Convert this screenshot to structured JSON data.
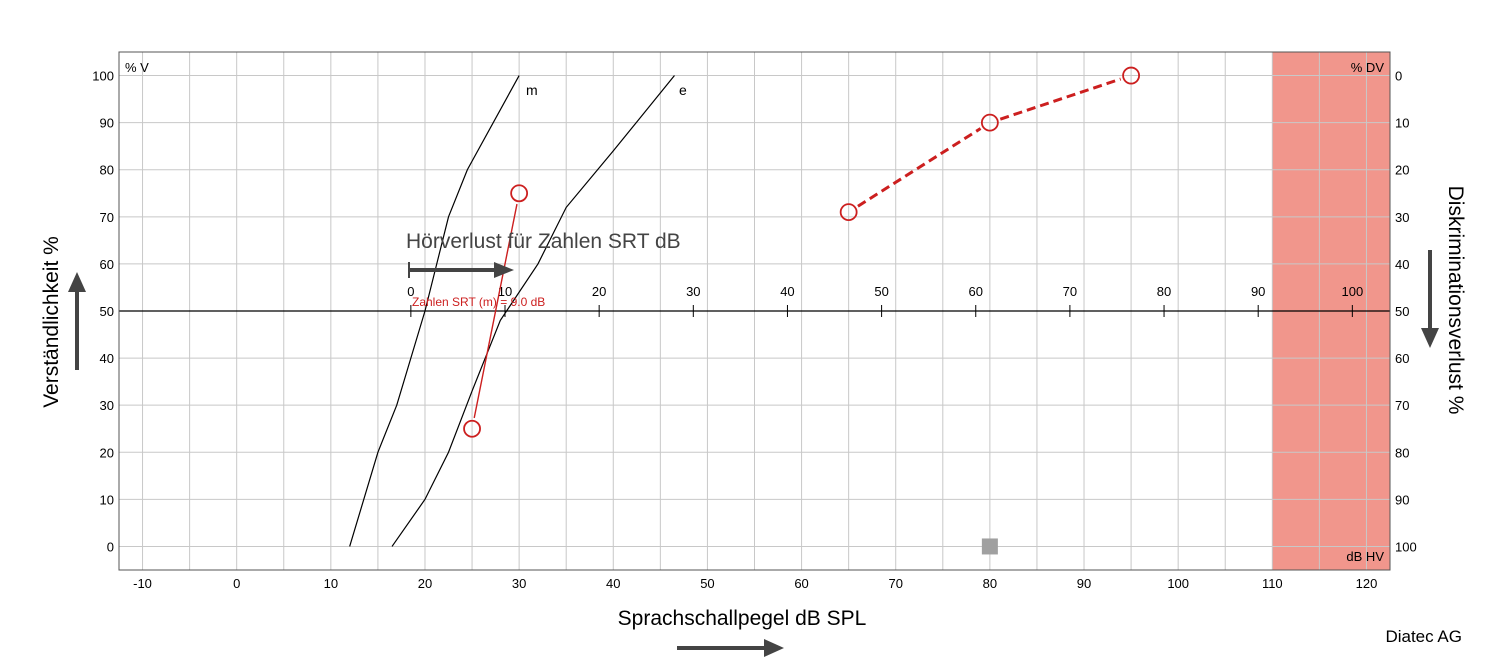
{
  "chart_data": {
    "type": "scatter",
    "title": "",
    "x_axis": {
      "label": "Sprachschallpegel dB SPL",
      "range": [
        -12.5,
        122.5
      ],
      "ticks": [
        -10,
        0,
        10,
        20,
        30,
        40,
        50,
        60,
        70,
        80,
        90,
        100,
        110,
        120
      ],
      "minor_step": 5
    },
    "hl_axis": {
      "label": "dB HV",
      "ticks": [
        0,
        10,
        20,
        30,
        40,
        50,
        60,
        70,
        80,
        90,
        100
      ],
      "offset_spl": 18.5
    },
    "y_left": {
      "label": "Verständlichkeit %",
      "unit": "% V",
      "range": [
        -5,
        105
      ],
      "ticks": [
        0,
        10,
        20,
        30,
        40,
        50,
        60,
        70,
        80,
        90,
        100
      ]
    },
    "y_right": {
      "label": "Diskriminationsverlust %",
      "unit": "% DV",
      "ticks": [
        0,
        10,
        20,
        30,
        40,
        50,
        60,
        70,
        80,
        90,
        100
      ]
    },
    "grid": true,
    "shaded_region": {
      "x_from": 110,
      "x_to": 122.5,
      "color": "#f1968c"
    },
    "series": [
      {
        "name": "m",
        "style": "reference-line",
        "color": "#000000",
        "points": [
          [
            12,
            0
          ],
          [
            15,
            20
          ],
          [
            17,
            30
          ],
          [
            20,
            50
          ],
          [
            22.5,
            70
          ],
          [
            24.5,
            80
          ],
          [
            30,
            100
          ]
        ]
      },
      {
        "name": "e",
        "style": "reference-line",
        "color": "#000000",
        "points": [
          [
            16.5,
            0
          ],
          [
            20,
            10
          ],
          [
            22.5,
            20
          ],
          [
            25,
            33
          ],
          [
            28,
            48
          ],
          [
            32,
            60
          ],
          [
            35,
            72
          ],
          [
            40,
            84
          ],
          [
            46.5,
            100
          ]
        ]
      },
      {
        "style": "markers-thin-line",
        "color": "#cc1f1f",
        "points": [
          [
            25,
            25
          ],
          [
            30,
            75
          ]
        ]
      },
      {
        "style": "markers-dashed-line",
        "color": "#cc1f1f",
        "points": [
          [
            65,
            71
          ],
          [
            80,
            90
          ],
          [
            95,
            100
          ]
        ]
      },
      {
        "style": "square-marker",
        "color": "#a0a0a0",
        "points": [
          [
            80,
            0
          ]
        ]
      }
    ],
    "annotations": {
      "hl_label": "Hörverlust für Zahlen SRT dB",
      "srt_label": "Zahlen SRT (m) = 9.0 dB",
      "m_label": "m",
      "e_label": "e"
    }
  },
  "footer": {
    "company": "Diatec AG"
  },
  "colors": {
    "grid": "#c8c8c8",
    "axis": "#000000",
    "red": "#cc1f1f",
    "shade": "#f1968c",
    "arrow": "#444444"
  }
}
